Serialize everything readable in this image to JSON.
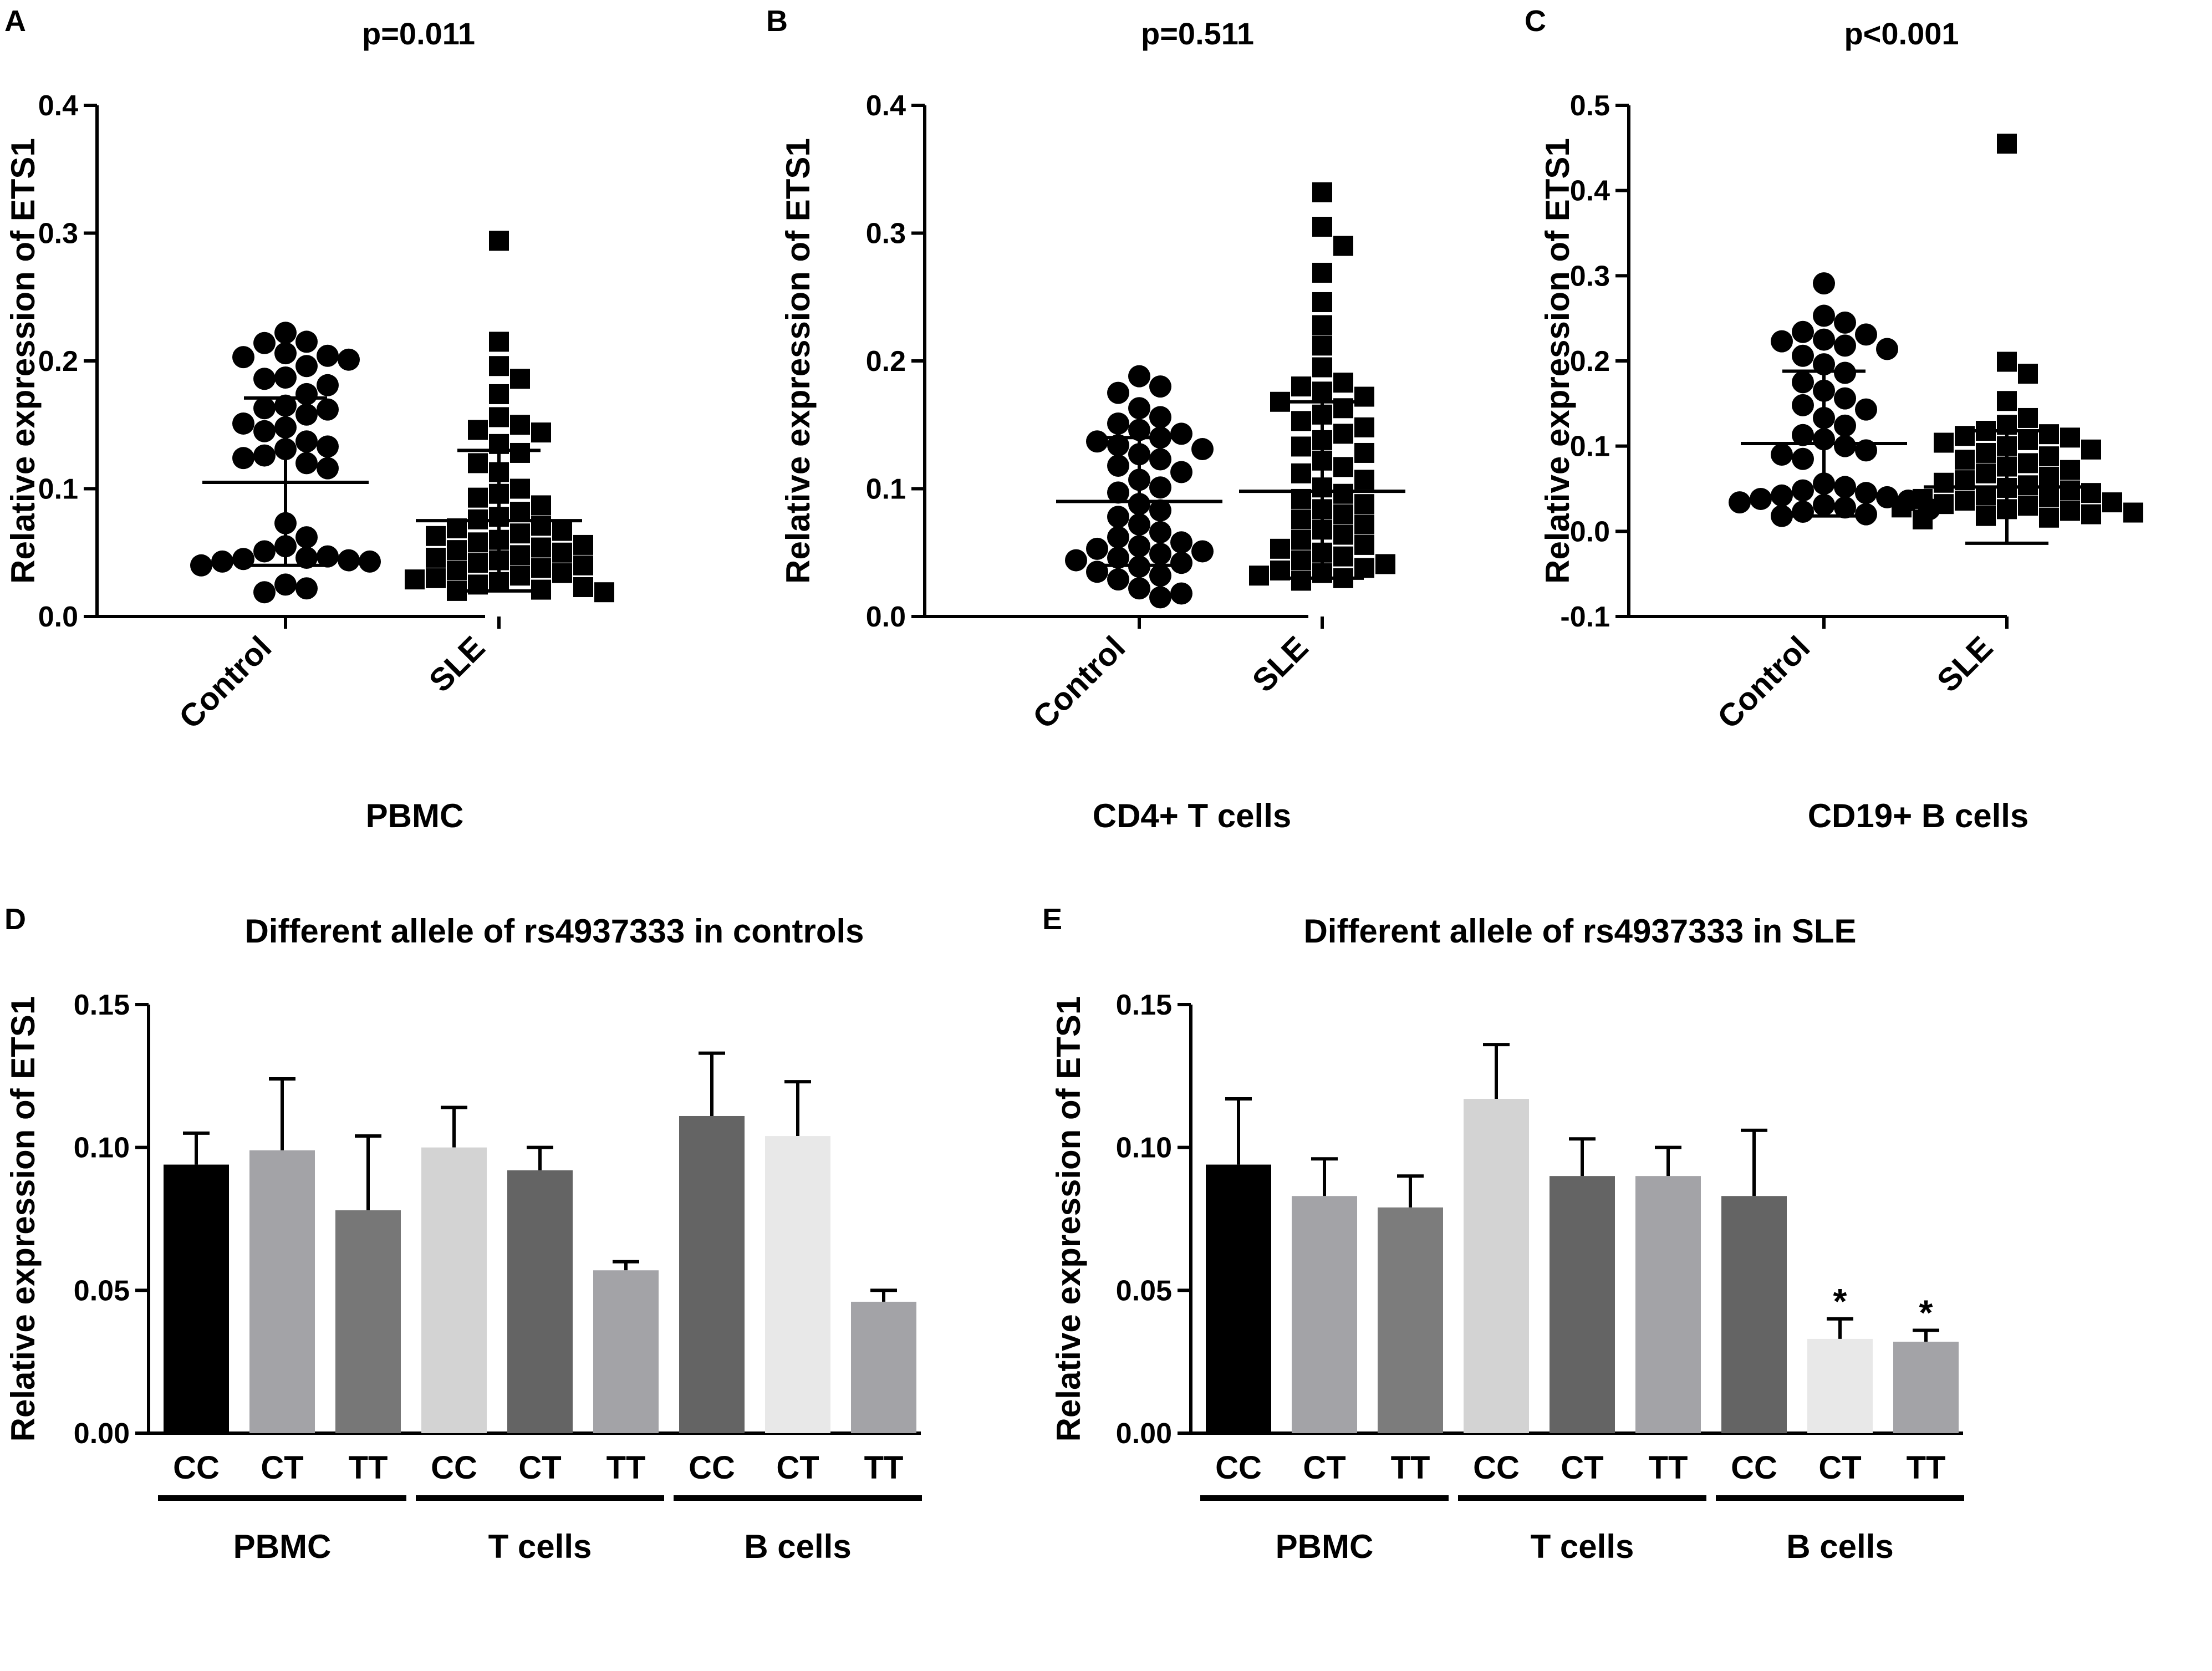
{
  "figure": {
    "panels": {
      "A": {
        "letter": "A"
      },
      "B": {
        "letter": "B"
      },
      "C": {
        "letter": "C"
      },
      "D": {
        "letter": "D"
      },
      "E": {
        "letter": "E"
      }
    }
  },
  "chart_data": [
    {
      "id": "A",
      "type": "scatter",
      "title": "p=0.011",
      "ylabel": "Relative expression of ETS1",
      "xlabel": "PBMC",
      "ylim": [
        0,
        0.4
      ],
      "ytick_labels": [
        "0.0",
        "0.1",
        "0.2",
        "0.3",
        "0.4"
      ],
      "categories": [
        "Control",
        "SLE"
      ],
      "series": [
        {
          "name": "Control",
          "marker": "circle",
          "mean": 0.105,
          "sd_upper": 0.171,
          "sd_lower": 0.04,
          "values": [
            0.222,
            0.215,
            0.206,
            0.204,
            0.214,
            0.201,
            0.196,
            0.203,
            0.187,
            0.186,
            0.181,
            0.174,
            0.165,
            0.163,
            0.162,
            0.158,
            0.151,
            0.148,
            0.145,
            0.137,
            0.133,
            0.131,
            0.126,
            0.124,
            0.12,
            0.116,
            0.073,
            0.062,
            0.055,
            0.051,
            0.046,
            0.044,
            0.043,
            0.04,
            0.047,
            0.043,
            0.025,
            0.019,
            0.022,
            0.045
          ]
        },
        {
          "name": "SLE",
          "marker": "square",
          "mean": 0.075,
          "sd_upper": 0.13,
          "sd_lower": 0.02,
          "values": [
            0.294,
            0.215,
            0.196,
            0.186,
            0.174,
            0.156,
            0.15,
            0.146,
            0.144,
            0.135,
            0.128,
            0.12,
            0.113,
            0.1,
            0.096,
            0.093,
            0.087,
            0.082,
            0.078,
            0.076,
            0.071,
            0.069,
            0.067,
            0.065,
            0.063,
            0.06,
            0.058,
            0.056,
            0.054,
            0.052,
            0.05,
            0.048,
            0.046,
            0.044,
            0.042,
            0.04,
            0.038,
            0.036,
            0.034,
            0.032,
            0.03,
            0.029,
            0.027,
            0.025,
            0.023,
            0.021,
            0.02,
            0.019
          ]
        }
      ]
    },
    {
      "id": "B",
      "type": "scatter",
      "title": "p=0.511",
      "ylabel": "Relative expression of ETS1",
      "xlabel": "CD4+ T cells",
      "ylim": [
        0,
        0.4
      ],
      "ytick_labels": [
        "0.0",
        "0.1",
        "0.2",
        "0.3",
        "0.4"
      ],
      "categories": [
        "Control",
        "SLE"
      ],
      "series": [
        {
          "name": "Control",
          "marker": "circle",
          "mean": 0.09,
          "sd_upper": 0.14,
          "sd_lower": 0.04,
          "values": [
            0.188,
            0.18,
            0.175,
            0.163,
            0.156,
            0.151,
            0.146,
            0.143,
            0.14,
            0.137,
            0.134,
            0.131,
            0.127,
            0.123,
            0.118,
            0.113,
            0.107,
            0.101,
            0.097,
            0.088,
            0.083,
            0.078,
            0.072,
            0.066,
            0.062,
            0.058,
            0.055,
            0.053,
            0.051,
            0.049,
            0.046,
            0.044,
            0.042,
            0.039,
            0.035,
            0.032,
            0.029,
            0.022,
            0.018,
            0.015
          ]
        },
        {
          "name": "SLE",
          "marker": "square",
          "mean": 0.098,
          "sd_upper": 0.168,
          "sd_lower": 0.03,
          "values": [
            0.332,
            0.305,
            0.29,
            0.269,
            0.246,
            0.228,
            0.212,
            0.195,
            0.183,
            0.18,
            0.176,
            0.172,
            0.168,
            0.163,
            0.158,
            0.153,
            0.148,
            0.143,
            0.138,
            0.133,
            0.128,
            0.122,
            0.117,
            0.112,
            0.107,
            0.101,
            0.096,
            0.092,
            0.088,
            0.084,
            0.08,
            0.076,
            0.072,
            0.068,
            0.064,
            0.06,
            0.056,
            0.053,
            0.05,
            0.047,
            0.044,
            0.041,
            0.038,
            0.036,
            0.034,
            0.032,
            0.03,
            0.028
          ]
        }
      ]
    },
    {
      "id": "C",
      "type": "scatter",
      "title": "p<0.001",
      "ylabel": "Relative expression of ETS1",
      "xlabel": "CD19+ B cells",
      "ylim": [
        -0.1,
        0.5
      ],
      "ytick_labels": [
        "-0.1",
        "0.0",
        "0.1",
        "0.2",
        "0.3",
        "0.4",
        "0.5"
      ],
      "categories": [
        "Control",
        "SLE"
      ],
      "series": [
        {
          "name": "Control",
          "marker": "circle",
          "mean": 0.103,
          "sd_upper": 0.188,
          "sd_lower": 0.018,
          "values": [
            0.291,
            0.253,
            0.245,
            0.234,
            0.231,
            0.225,
            0.223,
            0.218,
            0.214,
            0.206,
            0.196,
            0.186,
            0.175,
            0.165,
            0.156,
            0.148,
            0.143,
            0.133,
            0.124,
            0.113,
            0.108,
            0.1,
            0.095,
            0.09,
            0.085,
            0.056,
            0.052,
            0.048,
            0.045,
            0.042,
            0.04,
            0.038,
            0.036,
            0.034,
            0.031,
            0.028,
            0.026,
            0.023,
            0.02,
            0.018
          ]
        },
        {
          "name": "SLE",
          "marker": "square",
          "mean": 0.052,
          "sd_upper": 0.118,
          "sd_lower": -0.014,
          "values": [
            0.455,
            0.199,
            0.185,
            0.153,
            0.133,
            0.125,
            0.118,
            0.114,
            0.112,
            0.11,
            0.107,
            0.104,
            0.1,
            0.096,
            0.092,
            0.088,
            0.084,
            0.08,
            0.076,
            0.072,
            0.068,
            0.064,
            0.06,
            0.057,
            0.054,
            0.051,
            0.048,
            0.045,
            0.042,
            0.04,
            0.038,
            0.036,
            0.034,
            0.032,
            0.03,
            0.028,
            0.026,
            0.024,
            0.022,
            0.02,
            0.018,
            0.016,
            0.014
          ]
        }
      ]
    },
    {
      "id": "D",
      "type": "bar",
      "title": "Different allele of rs4937333 in controls",
      "ylabel": "Relative expression of ETS1",
      "ylim": [
        0,
        0.15
      ],
      "ytick_labels": [
        "0.00",
        "0.05",
        "0.10",
        "0.15"
      ],
      "categories": [
        "CC",
        "CT",
        "TT",
        "CC",
        "CT",
        "TT",
        "CC",
        "CT",
        "TT"
      ],
      "groups": [
        "PBMC",
        "T cells",
        "B cells"
      ],
      "values": [
        0.094,
        0.099,
        0.078,
        0.1,
        0.092,
        0.057,
        0.111,
        0.104,
        0.046
      ],
      "error_upper": [
        0.105,
        0.124,
        0.104,
        0.114,
        0.1,
        0.06,
        0.133,
        0.123,
        0.05
      ],
      "colors": [
        "#000000",
        "#a3a3a7",
        "#777777",
        "#d3d3d3",
        "#646464",
        "#a3a3a7",
        "#646464",
        "#e8e8e8",
        "#a3a3a7"
      ],
      "annotations": [
        "",
        "",
        "",
        "",
        "",
        "",
        "",
        "",
        ""
      ]
    },
    {
      "id": "E",
      "type": "bar",
      "title": "Different allele of rs4937333 in SLE",
      "ylabel": "Relative expression of ETS1",
      "ylim": [
        0,
        0.15
      ],
      "ytick_labels": [
        "0.00",
        "0.05",
        "0.10",
        "0.15"
      ],
      "categories": [
        "CC",
        "CT",
        "TT",
        "CC",
        "CT",
        "TT",
        "CC",
        "CT",
        "TT"
      ],
      "groups": [
        "PBMC",
        "T cells",
        "B cells"
      ],
      "values": [
        0.094,
        0.083,
        0.079,
        0.117,
        0.09,
        0.09,
        0.083,
        0.033,
        0.032
      ],
      "error_upper": [
        0.117,
        0.096,
        0.09,
        0.136,
        0.103,
        0.1,
        0.106,
        0.04,
        0.036
      ],
      "colors": [
        "#000000",
        "#a3a3a7",
        "#7c7c7c",
        "#d3d3d3",
        "#646464",
        "#a3a3a7",
        "#646464",
        "#e8e8e8",
        "#a3a3a7"
      ],
      "annotations": [
        "",
        "",
        "",
        "",
        "",
        "",
        "",
        "*",
        "*"
      ]
    }
  ]
}
